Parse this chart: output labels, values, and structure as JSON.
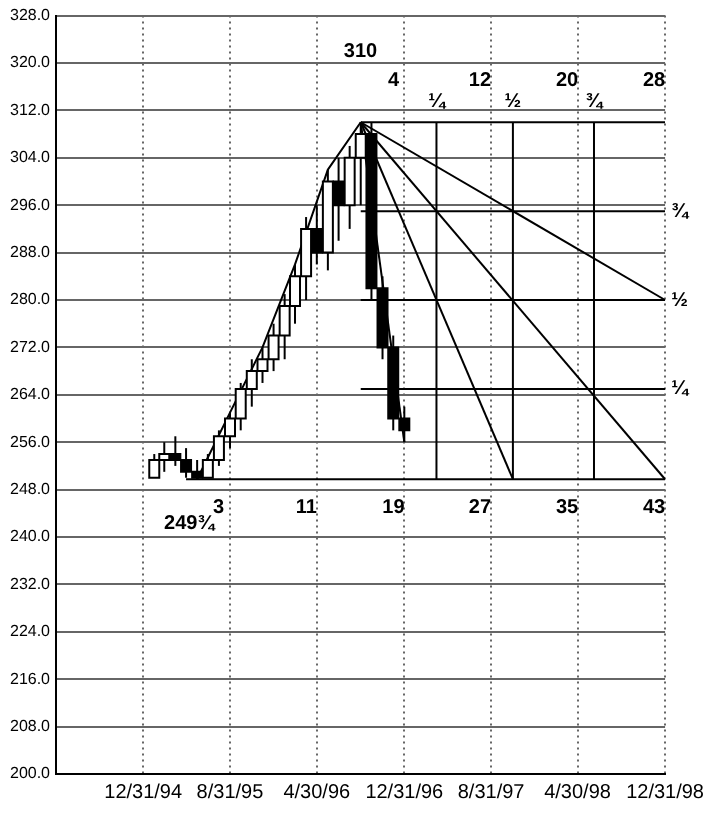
{
  "chart_data": {
    "type": "candlestick",
    "color": "#000000",
    "x": [
      "1995-01-31",
      "1995-02-28",
      "1995-03-31",
      "1995-04-30",
      "1995-05-31",
      "1995-06-30",
      "1995-07-31",
      "1995-08-31",
      "1995-09-30",
      "1995-10-31",
      "1995-11-30",
      "1995-12-31",
      "1996-01-31",
      "1996-02-29",
      "1996-03-31",
      "1996-04-30",
      "1996-05-31",
      "1996-06-30",
      "1996-07-31",
      "1996-08-31",
      "1996-09-30",
      "1996-10-31",
      "1996-11-30",
      "1996-12-31"
    ],
    "ohlc": [
      [
        250,
        254,
        250,
        253
      ],
      [
        253,
        256,
        251,
        254
      ],
      [
        254,
        257,
        252,
        253
      ],
      [
        253,
        255,
        250,
        251
      ],
      [
        251,
        253,
        249.75,
        250
      ],
      [
        250,
        254,
        250,
        253
      ],
      [
        253,
        258,
        252,
        257
      ],
      [
        257,
        261,
        255,
        260
      ],
      [
        260,
        266,
        258,
        265
      ],
      [
        265,
        270,
        262,
        268
      ],
      [
        268,
        272,
        266,
        270
      ],
      [
        270,
        276,
        268,
        274
      ],
      [
        274,
        281,
        270,
        279
      ],
      [
        279,
        286,
        276,
        284
      ],
      [
        284,
        294,
        280,
        292
      ],
      [
        292,
        296,
        286,
        288
      ],
      [
        288,
        302,
        285,
        300
      ],
      [
        300,
        304,
        290,
        296
      ],
      [
        296,
        306,
        292,
        304
      ],
      [
        304,
        310,
        296,
        308
      ],
      [
        308,
        310,
        280,
        282
      ],
      [
        282,
        284,
        270,
        272
      ],
      [
        272,
        274,
        258,
        260
      ],
      [
        260,
        262,
        256,
        258
      ]
    ],
    "series": [
      {
        "type": "line",
        "color": "#000000",
        "x": [
          "1995-05-31",
          "1995-08-31",
          "1995-11-30",
          "1996-02-29",
          "1996-05-31",
          "1996-08-31"
        ],
        "values": [
          249.75,
          261,
          272,
          286,
          302,
          310
        ]
      },
      {
        "type": "line",
        "color": "#000000",
        "x": [
          "1996-08-31",
          "1998-12-31"
        ],
        "values": [
          310,
          280
        ]
      },
      {
        "type": "line",
        "color": "#000000",
        "x": [
          "1996-08-31",
          "1998-12-31"
        ],
        "values": [
          310,
          249.75
        ]
      },
      {
        "type": "line",
        "color": "#000000",
        "x": [
          "1996-08-31",
          "1997-10-31"
        ],
        "values": [
          310,
          249.75
        ]
      },
      {
        "type": "line",
        "color": "#000000",
        "x": [
          "1996-08-31",
          "1996-12-31"
        ],
        "values": [
          310,
          256
        ]
      },
      {
        "type": "line",
        "color": "#000000",
        "x": [
          "1996-08-31",
          "1998-12-31"
        ],
        "values": [
          310,
          310
        ]
      },
      {
        "type": "line",
        "color": "#000000",
        "x": [
          "1996-08-31",
          "1998-12-31"
        ],
        "values": [
          295,
          295
        ]
      },
      {
        "type": "line",
        "color": "#000000",
        "x": [
          "1996-08-31",
          "1998-12-31"
        ],
        "values": [
          280,
          280
        ]
      },
      {
        "type": "line",
        "color": "#000000",
        "x": [
          "1996-08-31",
          "1998-12-31"
        ],
        "values": [
          265,
          265
        ]
      },
      {
        "type": "line",
        "color": "#000000",
        "x": [
          "1995-04-30",
          "1998-12-31"
        ],
        "values": [
          249.75,
          249.75
        ]
      },
      {
        "type": "line",
        "color": "#000000",
        "x": [
          "1997-03-31",
          "1997-03-31"
        ],
        "values": [
          249.75,
          310
        ]
      },
      {
        "type": "line",
        "color": "#000000",
        "x": [
          "1997-10-31",
          "1997-10-31"
        ],
        "values": [
          249.75,
          310
        ]
      },
      {
        "type": "line",
        "color": "#000000",
        "x": [
          "1998-06-15",
          "1998-06-15"
        ],
        "values": [
          249.75,
          310
        ]
      }
    ],
    "xlim": [
      "1994-05-01",
      "1998-12-31"
    ],
    "xticks": [
      {
        "value": "1994-12-31",
        "label": "12/31/94"
      },
      {
        "value": "1995-08-31",
        "label": "8/31/95"
      },
      {
        "value": "1996-04-30",
        "label": "4/30/96"
      },
      {
        "value": "1996-12-31",
        "label": "12/31/96"
      },
      {
        "value": "1997-08-31",
        "label": "8/31/97"
      },
      {
        "value": "1998-04-30",
        "label": "4/30/98"
      },
      {
        "value": "1998-12-31",
        "label": "12/31/98"
      }
    ],
    "ylim": [
      200,
      328
    ],
    "yticks": [
      {
        "value": 200,
        "label": "200.0"
      },
      {
        "value": 208,
        "label": "208.0"
      },
      {
        "value": 216,
        "label": "216.0"
      },
      {
        "value": 224,
        "label": "224.0"
      },
      {
        "value": 232,
        "label": "232.0"
      },
      {
        "value": 240,
        "label": "240.0"
      },
      {
        "value": 248,
        "label": "248.0"
      },
      {
        "value": 256,
        "label": "256.0"
      },
      {
        "value": 264,
        "label": "264.0"
      },
      {
        "value": 272,
        "label": "272.0"
      },
      {
        "value": 280,
        "label": "280.0"
      },
      {
        "value": 288,
        "label": "288.0"
      },
      {
        "value": 296,
        "label": "296.0"
      },
      {
        "value": 304,
        "label": "304.0"
      },
      {
        "value": 312,
        "label": "312.0"
      },
      {
        "value": 320,
        "label": "320.0"
      },
      {
        "value": 328,
        "label": "328.0"
      }
    ],
    "grid": true,
    "annotations": [
      "310",
      {
        "text": "249¾",
        "x": "1995-05-31",
        "y": 249.75
      },
      "3",
      "11",
      "19",
      "27",
      "35",
      "43",
      "4",
      "12",
      "20",
      "28",
      "¼",
      "½",
      "¾",
      "¾",
      "½",
      "¼"
    ]
  }
}
